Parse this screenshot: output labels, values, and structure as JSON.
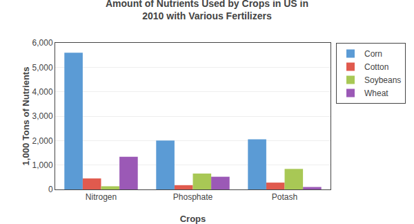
{
  "chart_data": {
    "type": "bar",
    "title": "Amount of Nutrients Used by Crops in US in\n2010 with Various Fertilizers",
    "x_label": "Crops",
    "y_label": "1,000 Tons of Nutrients",
    "categories": [
      "Nitrogen",
      "Phosphate",
      "Potash"
    ],
    "series": [
      {
        "name": "Corn",
        "color": "#5b9bd5",
        "values": [
          5600,
          2000,
          2050
        ]
      },
      {
        "name": "Cotton",
        "color": "#e05a4e",
        "values": [
          450,
          175,
          280
        ]
      },
      {
        "name": "Soybeans",
        "color": "#a8c855",
        "values": [
          130,
          650,
          840
        ]
      },
      {
        "name": "Wheat",
        "color": "#9b59b6",
        "values": [
          1340,
          520,
          100
        ]
      }
    ],
    "ylim": [
      0,
      6000
    ],
    "yticks": [
      0,
      {
        "value": 1000,
        "label": "1,000"
      },
      {
        "value": 2000,
        "label": "2,000"
      },
      {
        "value": 3000,
        "label": "3,000"
      },
      {
        "value": 4000,
        "label": "4,000"
      },
      {
        "value": 5000,
        "label": "5,000"
      },
      {
        "value": 6000,
        "label": "6,000"
      }
    ],
    "grid": true,
    "legend": "right"
  }
}
